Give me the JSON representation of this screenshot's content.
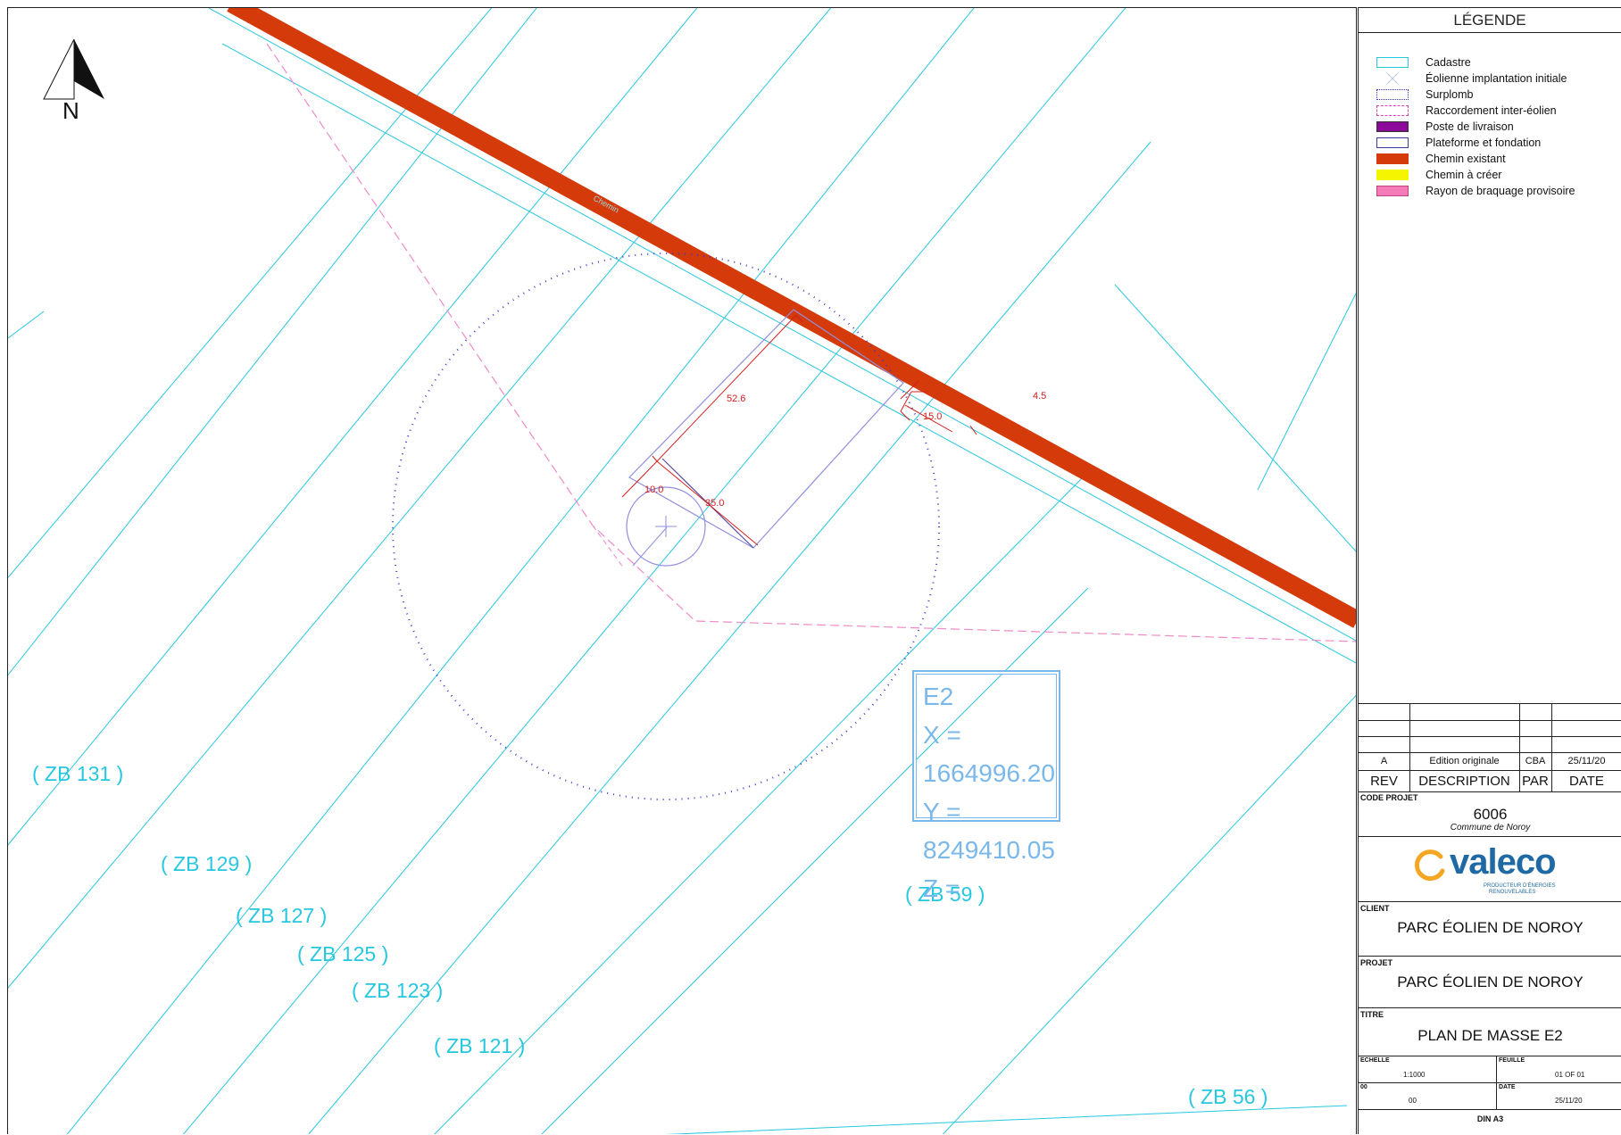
{
  "map": {
    "north_label": "N",
    "road_label": "Chemin",
    "dimensions": [
      "52.6",
      "4.5",
      "15.0",
      "10.0",
      "35.0"
    ],
    "parcels": [
      "( ZB 131 )",
      "( ZB 129 )",
      "( ZB 127 )",
      "( ZB 125 )",
      "( ZB 123 )",
      "( ZB 121 )",
      "( ZB 59 )",
      "( ZB 56 )"
    ],
    "turbine": {
      "name": "E2",
      "x_line": "X = 1664996.20",
      "y_line": "Y = 8249410.05",
      "z_line": "Z ="
    },
    "colors": {
      "cadastre": "#27c7e0",
      "road": "#d53a0a",
      "overhang": "#3a3acc",
      "connection": "#f08ac8",
      "dimension": "#d42020",
      "coord_box": "#7ab8ea"
    }
  },
  "legend": {
    "title": "LÉGENDE",
    "items": [
      {
        "label": "Cadastre",
        "swatch": "cadastre"
      },
      {
        "label": "Éolienne implantation initiale",
        "swatch": "turbine"
      },
      {
        "label": "Surplomb",
        "swatch": "dotted"
      },
      {
        "label": "Raccordement inter-éolien",
        "swatch": "dashed"
      },
      {
        "label": "Poste de livraison",
        "swatch": "purple"
      },
      {
        "label": "Plateforme et fondation",
        "swatch": "outline-blue"
      },
      {
        "label": "Chemin existant",
        "swatch": "road"
      },
      {
        "label": "Chemin à créer",
        "swatch": "yellow"
      },
      {
        "label": "Rayon de braquage provisoire",
        "swatch": "pink"
      }
    ]
  },
  "title_block": {
    "revision": {
      "rev": "A",
      "description": "Edition originale",
      "by": "CBA",
      "date": "25/11/20"
    },
    "headers": {
      "rev": "REV",
      "description": "DESCRIPTION",
      "by": "PAR",
      "date": "DATE"
    },
    "code_projet_label": "CODE PROJET",
    "code_projet": "6006",
    "commune": "Commune de Noroy",
    "logo_name": "valeco",
    "logo_tagline_1": "PRODUCTEUR D'ÉNERGIES",
    "logo_tagline_2": "RENOUVELABLES",
    "client_label": "CLIENT",
    "client": "PARC ÉOLIEN DE NOROY",
    "projet_label": "PROJET",
    "projet": "PARC ÉOLIEN DE NOROY",
    "titre_label": "TITRE",
    "titre": "PLAN DE MASSE E2",
    "echelle_label": "ECHELLE",
    "echelle": "1:1000",
    "feuille_label": "FEUILLE",
    "feuille": "01 OF 01",
    "index_label": "00",
    "index": "00",
    "date_label": "DATE",
    "date": "25/11/20",
    "format": "DIN A3"
  }
}
